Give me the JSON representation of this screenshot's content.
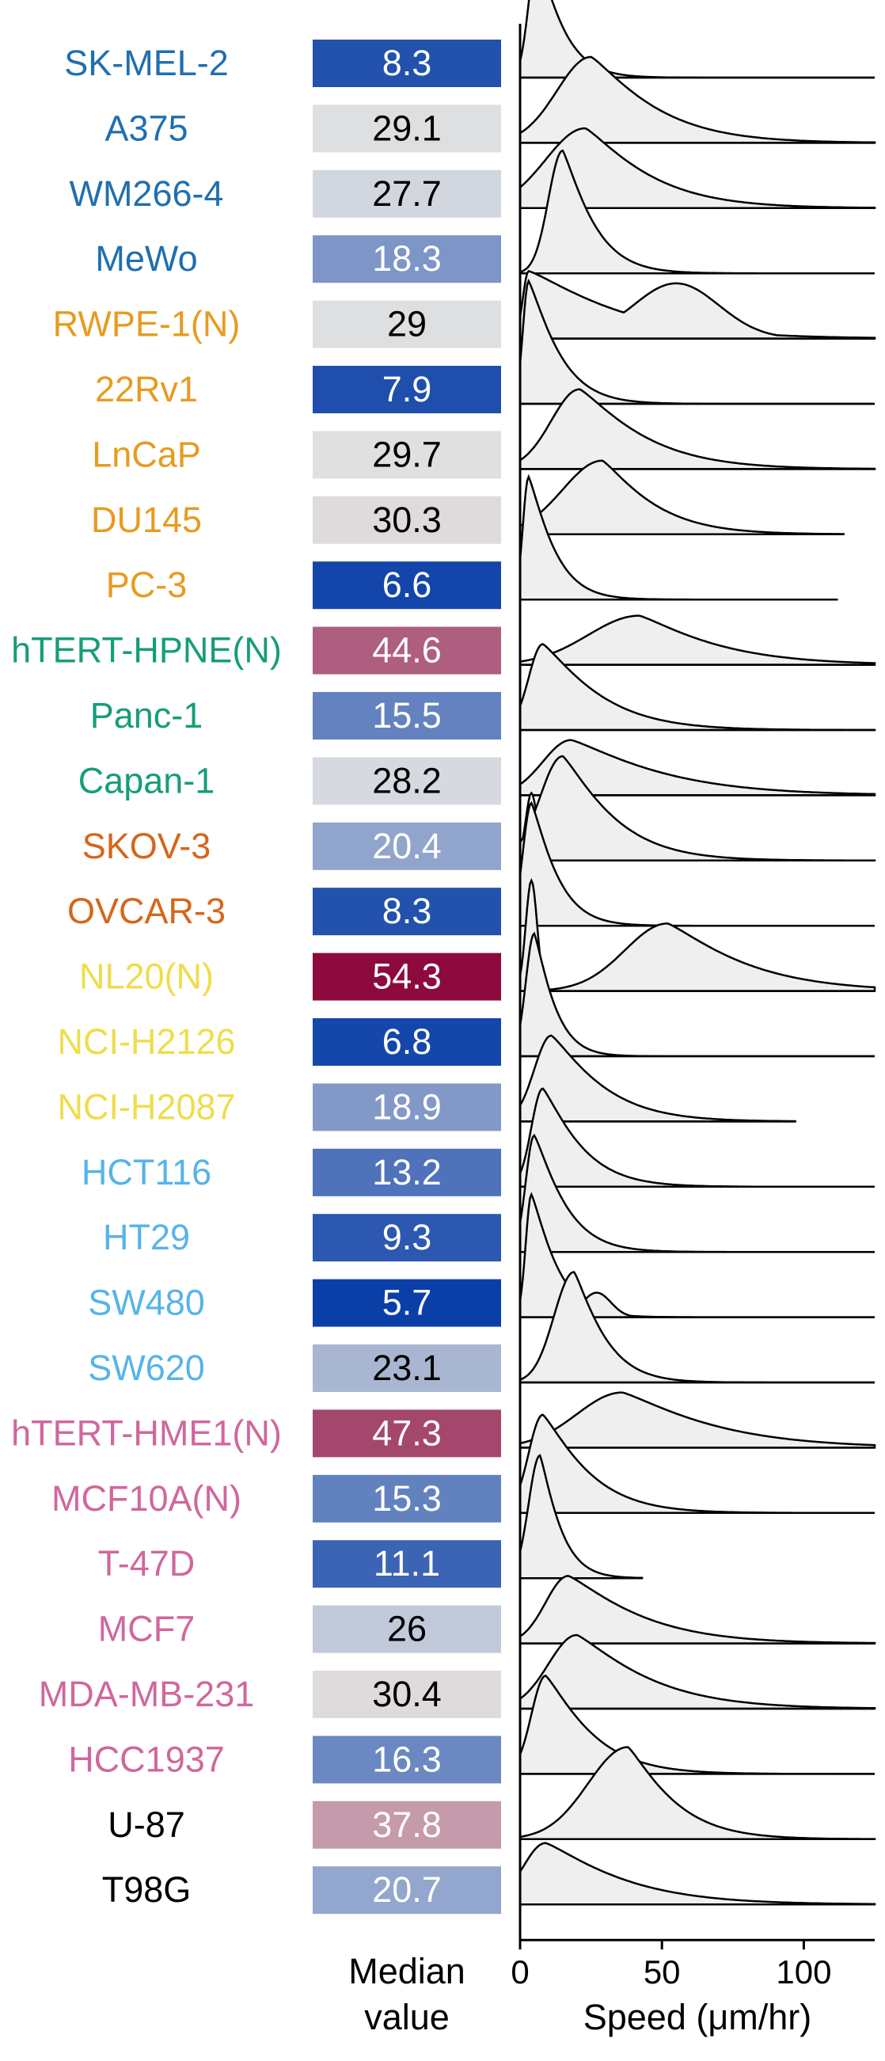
{
  "chart_data": {
    "type": "ridgeline",
    "xlabel": "Speed (μm/hr)",
    "median_header": "Median value",
    "xlim": [
      0,
      125
    ],
    "xticks": [
      "0",
      "50",
      "100"
    ],
    "colors": {
      "median_low": "#0b3fa8",
      "median_mid": "#e2e2e2",
      "median_high": "#8c0a3d",
      "density_fill": "#efefef",
      "density_line": "#000000"
    },
    "median_range": [
      5.7,
      54.3
    ],
    "rows": [
      {
        "name": "SK-MEL-2",
        "median": "8.3",
        "color": "#1f6fb0",
        "x_max": 125,
        "peak": 6,
        "peak_height": 1.0,
        "spread": 3,
        "tail": 10,
        "peak2": null
      },
      {
        "name": "A375",
        "median": "29.1",
        "color": "#1f6fb0",
        "x_max": 125,
        "peak": 25,
        "peak_height": 0.7,
        "spread": 12,
        "tail": 25,
        "peak2": null
      },
      {
        "name": "WM266-4",
        "median": "27.7",
        "color": "#1f6fb0",
        "x_max": 125,
        "peak": 23,
        "peak_height": 0.65,
        "spread": 14,
        "tail": 25,
        "peak2": null
      },
      {
        "name": "MeWo",
        "median": "18.3",
        "color": "#1f6fb0",
        "x_max": 125,
        "peak": 15,
        "peak_height": 1.0,
        "spread": 5,
        "tail": 12,
        "peak2": null
      },
      {
        "name": "RWPE-1(N)",
        "median": "29",
        "color": "#e79b1f",
        "x_max": 125,
        "peak": 3,
        "peak_height": 0.55,
        "spread": 2,
        "tail": 35,
        "peak2": [
          55,
          0.45,
          15
        ]
      },
      {
        "name": "22Rv1",
        "median": "7.9",
        "color": "#e79b1f",
        "x_max": 125,
        "peak": 3,
        "peak_height": 1.0,
        "spread": 2,
        "tail": 12,
        "peak2": null
      },
      {
        "name": "LnCaP",
        "median": "29.7",
        "color": "#e79b1f",
        "x_max": 125,
        "peak": 21,
        "peak_height": 0.65,
        "spread": 10,
        "tail": 25,
        "peak2": null
      },
      {
        "name": "DU145",
        "median": "30.3",
        "color": "#e79b1f",
        "x_max": 114,
        "peak": 29,
        "peak_height": 0.6,
        "spread": 14,
        "tail": 20,
        "peak2": null
      },
      {
        "name": "PC-3",
        "median": "6.6",
        "color": "#e79b1f",
        "x_max": 112,
        "peak": 3,
        "peak_height": 1.0,
        "spread": 2,
        "tail": 10,
        "peak2": null
      },
      {
        "name": "hTERT-HPNE(N)",
        "median": "44.6",
        "color": "#169d7a",
        "x_max": 125,
        "peak": 42,
        "peak_height": 0.4,
        "spread": 18,
        "tail": 30,
        "peak2": null
      },
      {
        "name": "Panc-1",
        "median": "15.5",
        "color": "#169d7a",
        "x_max": 125,
        "peak": 8,
        "peak_height": 0.7,
        "spread": 5,
        "tail": 22,
        "peak2": null
      },
      {
        "name": "Capan-1",
        "median": "28.2",
        "color": "#169d7a",
        "x_max": 125,
        "peak": 18,
        "peak_height": 0.45,
        "spread": 10,
        "tail": 35,
        "peak2": null
      },
      {
        "name": "SKOV-3",
        "median": "20.4",
        "color": "#d5661c",
        "x_max": 125,
        "peak": 15,
        "peak_height": 0.85,
        "spread": 8,
        "tail": 20,
        "peak2": [
          4,
          0.55,
          2
        ]
      },
      {
        "name": "OVCAR-3",
        "median": "8.3",
        "color": "#d5661c",
        "x_max": 125,
        "peak": 4,
        "peak_height": 1.0,
        "spread": 3,
        "tail": 10,
        "peak2": null
      },
      {
        "name": "NL20(N)",
        "median": "54.3",
        "color": "#eedd4c",
        "x_max": 125,
        "peak": 52,
        "peak_height": 0.55,
        "spread": 15,
        "tail": 30,
        "peak2": [
          4,
          0.9,
          2
        ]
      },
      {
        "name": "NCI-H2126",
        "median": "6.8",
        "color": "#eedd4c",
        "x_max": 125,
        "peak": 5,
        "peak_height": 1.0,
        "spread": 3,
        "tail": 8,
        "peak2": null
      },
      {
        "name": "NCI-H2087",
        "median": "18.9",
        "color": "#eedd4c",
        "x_max": 97,
        "peak": 11,
        "peak_height": 0.7,
        "spread": 6,
        "tail": 20,
        "peak2": null
      },
      {
        "name": "HCT116",
        "median": "13.2",
        "color": "#56b4e9",
        "x_max": 125,
        "peak": 8,
        "peak_height": 0.8,
        "spread": 4,
        "tail": 15,
        "peak2": null
      },
      {
        "name": "HT29",
        "median": "9.3",
        "color": "#56b4e9",
        "x_max": 125,
        "peak": 5,
        "peak_height": 0.95,
        "spread": 3,
        "tail": 12,
        "peak2": null
      },
      {
        "name": "SW480",
        "median": "5.7",
        "color": "#56b4e9",
        "x_max": 125,
        "peak": 4,
        "peak_height": 1.0,
        "spread": 2,
        "tail": 10,
        "peak2": [
          27,
          0.2,
          5
        ]
      },
      {
        "name": "SW620",
        "median": "23.1",
        "color": "#56b4e9",
        "x_max": 125,
        "peak": 19,
        "peak_height": 0.9,
        "spread": 7,
        "tail": 12,
        "peak2": null
      },
      {
        "name": "hTERT-HME1(N)",
        "median": "47.3",
        "color": "#d0679d",
        "x_max": 125,
        "peak": 36,
        "peak_height": 0.45,
        "spread": 16,
        "tail": 35,
        "peak2": null
      },
      {
        "name": "MCF10A(N)",
        "median": "15.3",
        "color": "#d0679d",
        "x_max": 125,
        "peak": 8,
        "peak_height": 0.8,
        "spread": 5,
        "tail": 18,
        "peak2": null
      },
      {
        "name": "T-47D",
        "median": "11.1",
        "color": "#d0679d",
        "x_max": 43,
        "peak": 7,
        "peak_height": 1.0,
        "spread": 4,
        "tail": 8,
        "peak2": null
      },
      {
        "name": "MCF7",
        "median": "26",
        "color": "#d0679d",
        "x_max": 125,
        "peak": 17,
        "peak_height": 0.55,
        "spread": 8,
        "tail": 28,
        "peak2": null
      },
      {
        "name": "MDA-MB-231",
        "median": "30.4",
        "color": "#d0679d",
        "x_max": 125,
        "peak": 20,
        "peak_height": 0.6,
        "spread": 10,
        "tail": 28,
        "peak2": null
      },
      {
        "name": "HCC1937",
        "median": "16.3",
        "color": "#d0679d",
        "x_max": 125,
        "peak": 9,
        "peak_height": 0.8,
        "spread": 5,
        "tail": 18,
        "peak2": null
      },
      {
        "name": "U-87",
        "median": "37.8",
        "color": "#000000",
        "x_max": 125,
        "peak": 38,
        "peak_height": 0.75,
        "spread": 14,
        "tail": 18,
        "peak2": null
      },
      {
        "name": "T98G",
        "median": "20.7",
        "color": "#000000",
        "x_max": 125,
        "peak": 9,
        "peak_height": 0.5,
        "spread": 8,
        "tail": 30,
        "peak2": null
      }
    ]
  }
}
